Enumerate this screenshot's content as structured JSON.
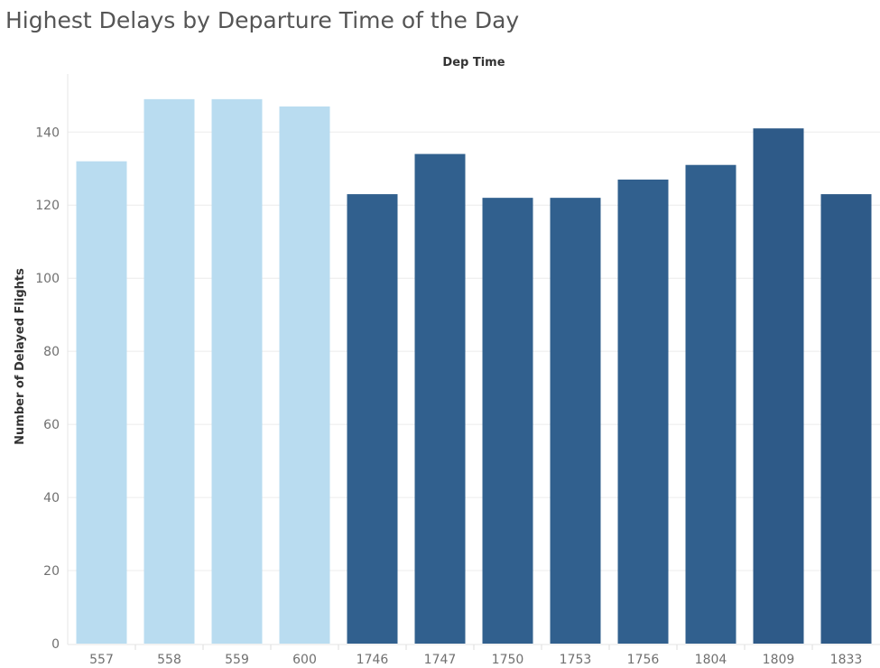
{
  "chart_data": {
    "type": "bar",
    "title": "Highest Delays by Departure Time of the Day",
    "column_header": "Dep Time",
    "ylabel": "Number of Delayed Flights",
    "ylim": [
      0,
      150
    ],
    "yticks": [
      0,
      20,
      40,
      60,
      80,
      100,
      120,
      140
    ],
    "grid": true,
    "categories": [
      "557",
      "558",
      "559",
      "600",
      "1746",
      "1747",
      "1750",
      "1753",
      "1756",
      "1804",
      "1809",
      "1833"
    ],
    "values": [
      132,
      149,
      149,
      147,
      123,
      134,
      122,
      122,
      127,
      131,
      141,
      123
    ],
    "colors": [
      "#b9dcf0",
      "#b9dcf0",
      "#b9dcf0",
      "#b9dcf0",
      "#31608e",
      "#31608e",
      "#31608e",
      "#31608e",
      "#31608e",
      "#31608e",
      "#2e5a88",
      "#2e5a88"
    ]
  }
}
